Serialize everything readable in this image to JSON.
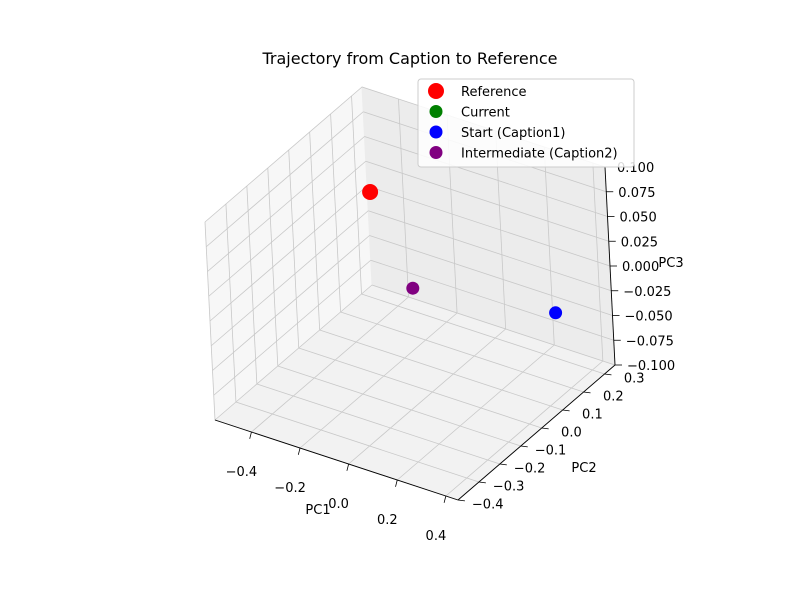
{
  "chart_data": {
    "type": "scatter",
    "projection": "3d",
    "title": "Trajectory from Caption to Reference",
    "xlabel": "PC1",
    "ylabel": "PC2",
    "zlabel": "PC3",
    "xlim": [
      -0.55,
      0.45
    ],
    "ylim": [
      -0.4,
      0.35
    ],
    "zlim": [
      -0.1,
      0.1
    ],
    "x_ticks": [
      -0.4,
      -0.2,
      0.0,
      0.2,
      0.4
    ],
    "x_tick_labels": [
      "−0.4",
      "−0.2",
      "0.0",
      "0.2",
      "0.4"
    ],
    "y_ticks": [
      -0.4,
      -0.3,
      -0.2,
      -0.1,
      0.0,
      0.1,
      0.2,
      0.3
    ],
    "y_tick_labels": [
      "−0.4",
      "−0.3",
      "−0.2",
      "−0.1",
      "0.0",
      "0.1",
      "0.2",
      "0.3"
    ],
    "z_ticks": [
      -0.1,
      -0.075,
      -0.05,
      -0.025,
      0.0,
      0.025,
      0.05,
      0.075,
      0.1
    ],
    "z_tick_labels": [
      "−0.100",
      "−0.075",
      "−0.050",
      "−0.025",
      "0.000",
      "0.025",
      "0.050",
      "0.075",
      "0.100"
    ],
    "grid": true,
    "legend_position": "top-right",
    "series": [
      {
        "name": "Reference",
        "color": "#ff0000",
        "marker_size": "large",
        "points": [
          {
            "x": -0.52,
            "y": 0.33,
            "z": 0.0
          }
        ]
      },
      {
        "name": "Current",
        "color": "#008000",
        "marker_size": "normal",
        "points": []
      },
      {
        "name": "Start (Caption1)",
        "color": "#0000ff",
        "marker_size": "normal",
        "points": [
          {
            "x": 0.45,
            "y": 0.09,
            "z": 0.0
          }
        ]
      },
      {
        "name": "Intermediate (Caption2)",
        "color": "#800080",
        "marker_size": "normal",
        "points": [
          {
            "x": -0.06,
            "y": 0.0,
            "z": 0.0
          }
        ]
      }
    ]
  }
}
